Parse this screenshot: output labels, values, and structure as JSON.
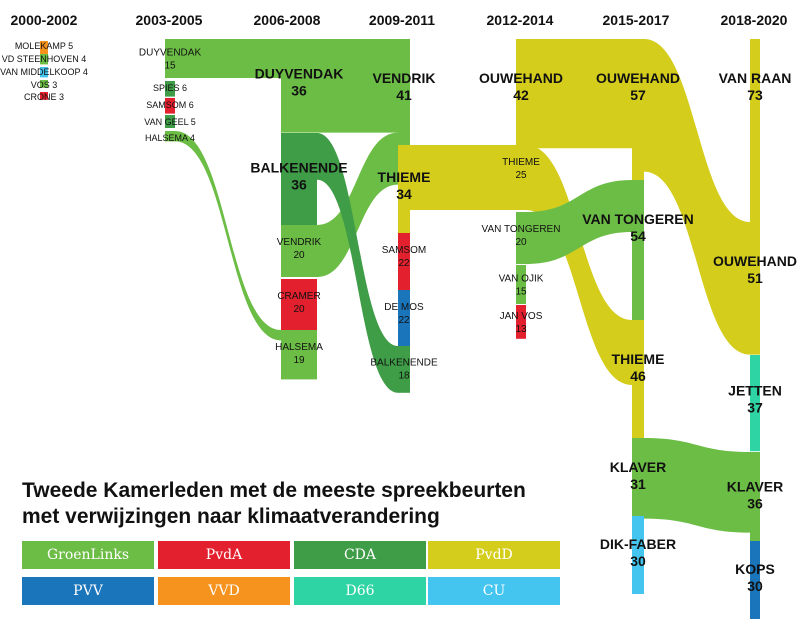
{
  "periods": [
    "2000-2002",
    "2003-2005",
    "2006-2008",
    "2009-2011",
    "2012-2014",
    "2015-2017",
    "2018-2020"
  ],
  "title_line1": "Tweede Kamerleden met de meeste spreekbeurten",
  "title_line2": "met verwijzingen naar klimaatverandering",
  "party_colors": {
    "GroenLinks": "#6cbd45",
    "PvdA": "#e3202d",
    "CDA": "#3f9c47",
    "PvdD": "#d4cd1c",
    "PVV": "#1a75bb",
    "VVD": "#f6921e",
    "D66": "#2fd4a4",
    "CU": "#44c5f0"
  },
  "legend": [
    {
      "name": "GroenLinks",
      "color": "#6cbd45"
    },
    {
      "name": "PvdA",
      "color": "#e3202d"
    },
    {
      "name": "CDA",
      "color": "#3f9c47"
    },
    {
      "name": "PvdD",
      "color": "#d4cd1c"
    },
    {
      "name": "PVV",
      "color": "#1a75bb"
    },
    {
      "name": "VVD",
      "color": "#f6921e"
    },
    {
      "name": "D66",
      "color": "#2fd4a4"
    },
    {
      "name": "CU",
      "color": "#44c5f0"
    }
  ],
  "nodes": [
    {
      "id": "molekamp",
      "period": 0,
      "name": "MOLEKAMP",
      "value": 5,
      "party": "VVD"
    },
    {
      "id": "vdsteenhoven",
      "period": 0,
      "name": "VD STEENHOVEN",
      "value": 4,
      "party": "GroenLinks"
    },
    {
      "id": "vanmiddelkoop",
      "period": 0,
      "name": "VAN MIDDELKOOP",
      "value": 4,
      "party": "CU"
    },
    {
      "id": "vos",
      "period": 0,
      "name": "VOS",
      "value": 3,
      "party": "GroenLinks"
    },
    {
      "id": "crone",
      "period": 0,
      "name": "CRONE",
      "value": 3,
      "party": "PvdA"
    },
    {
      "id": "duyvendak05",
      "period": 1,
      "name": "DUYVENDAK",
      "value": 15,
      "party": "GroenLinks"
    },
    {
      "id": "spies",
      "period": 1,
      "name": "SPIES",
      "value": 6,
      "party": "CDA"
    },
    {
      "id": "samsom05",
      "period": 1,
      "name": "SAMSOM",
      "value": 6,
      "party": "PvdA"
    },
    {
      "id": "vangeel",
      "period": 1,
      "name": "VAN GEEL",
      "value": 5,
      "party": "CDA"
    },
    {
      "id": "halsema05",
      "period": 1,
      "name": "HALSEMA",
      "value": 4,
      "party": "GroenLinks"
    },
    {
      "id": "duyvendak08",
      "period": 2,
      "name": "DUYVENDAK",
      "value": 36,
      "party": "GroenLinks"
    },
    {
      "id": "balkenende08",
      "period": 2,
      "name": "BALKENENDE",
      "value": 36,
      "party": "CDA"
    },
    {
      "id": "vendrik08",
      "period": 2,
      "name": "VENDRIK",
      "value": 20,
      "party": "GroenLinks"
    },
    {
      "id": "cramer",
      "period": 2,
      "name": "CRAMER",
      "value": 20,
      "party": "PvdA"
    },
    {
      "id": "halsema08",
      "period": 2,
      "name": "HALSEMA",
      "value": 19,
      "party": "GroenLinks"
    },
    {
      "id": "vendrik11",
      "period": 3,
      "name": "VENDRIK",
      "value": 41,
      "party": "GroenLinks"
    },
    {
      "id": "thieme11",
      "period": 3,
      "name": "THIEME",
      "value": 34,
      "party": "PvdD"
    },
    {
      "id": "samsom11",
      "period": 3,
      "name": "SAMSOM",
      "value": 22,
      "party": "PvdA"
    },
    {
      "id": "demos",
      "period": 3,
      "name": "DE MOS",
      "value": 22,
      "party": "PVV"
    },
    {
      "id": "balkenende11",
      "period": 3,
      "name": "BALKENENDE",
      "value": 18,
      "party": "CDA"
    },
    {
      "id": "ouwehand14",
      "period": 4,
      "name": "OUWEHAND",
      "value": 42,
      "party": "PvdD"
    },
    {
      "id": "thieme14",
      "period": 4,
      "name": "THIEME",
      "value": 25,
      "party": "PvdD"
    },
    {
      "id": "vantongeren14",
      "period": 4,
      "name": "VAN TONGEREN",
      "value": 20,
      "party": "GroenLinks"
    },
    {
      "id": "vanojik",
      "period": 4,
      "name": "VAN OJIK",
      "value": 15,
      "party": "GroenLinks"
    },
    {
      "id": "janvos",
      "period": 4,
      "name": "JAN VOS",
      "value": 13,
      "party": "PvdA"
    },
    {
      "id": "ouwehand17",
      "period": 5,
      "name": "OUWEHAND",
      "value": 57,
      "party": "PvdD"
    },
    {
      "id": "vantongeren17",
      "period": 5,
      "name": "VAN TONGEREN",
      "value": 54,
      "party": "GroenLinks"
    },
    {
      "id": "thieme17",
      "period": 5,
      "name": "THIEME",
      "value": 46,
      "party": "PvdD"
    },
    {
      "id": "klaver17",
      "period": 5,
      "name": "KLAVER",
      "value": 31,
      "party": "GroenLinks"
    },
    {
      "id": "dikfaber",
      "period": 5,
      "name": "DIK-FABER",
      "value": 30,
      "party": "CU"
    },
    {
      "id": "vanraan",
      "period": 6,
      "name": "VAN RAAN",
      "value": 73,
      "party": "PvdD"
    },
    {
      "id": "ouwehand20",
      "period": 6,
      "name": "OUWEHAND",
      "value": 51,
      "party": "PvdD"
    },
    {
      "id": "jetten",
      "period": 6,
      "name": "JETTEN",
      "value": 37,
      "party": "D66"
    },
    {
      "id": "klaver20",
      "period": 6,
      "name": "KLAVER",
      "value": 36,
      "party": "GroenLinks"
    },
    {
      "id": "kops",
      "period": 6,
      "name": "KOPS",
      "value": 30,
      "party": "PVV"
    }
  ],
  "links": [
    {
      "from": "duyvendak05",
      "to": "duyvendak08"
    },
    {
      "from": "halsema05",
      "to": "halsema08"
    },
    {
      "from": "duyvendak08",
      "to": "vendrik11"
    },
    {
      "from": "vendrik08",
      "to": "vendrik11"
    },
    {
      "from": "balkenende08",
      "to": "balkenende11"
    },
    {
      "from": "thieme11",
      "to": "thieme14"
    },
    {
      "from": "ouwehand14",
      "to": "ouwehand17"
    },
    {
      "from": "thieme14",
      "to": "thieme17"
    },
    {
      "from": "vantongeren14",
      "to": "vantongeren17"
    },
    {
      "from": "ouwehand17",
      "to": "ouwehand20"
    },
    {
      "from": "klaver17",
      "to": "klaver20"
    }
  ]
}
